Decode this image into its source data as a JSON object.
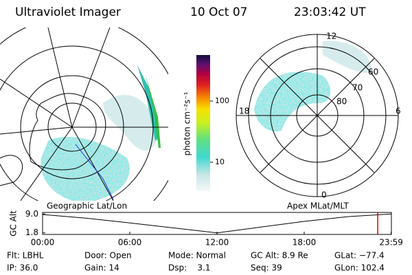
{
  "header": {
    "title": "Ultraviolet Imager",
    "date": "10 Oct 07",
    "time": "23:03:42 UT"
  },
  "left_panel": {
    "caption": "Geographic Lat/Lon"
  },
  "right_panel": {
    "caption": "Apex MLat/MLT",
    "mlt_labels": [
      "12",
      "18",
      "6",
      "0"
    ],
    "lat_labels": [
      "60",
      "70",
      "80"
    ]
  },
  "colorbar": {
    "label": "photon cm⁻²s⁻¹",
    "ticks": [
      "100",
      "10"
    ]
  },
  "chart_data": {
    "type": "line",
    "ylabel": "GC Alt",
    "x": [
      0,
      3,
      6,
      9,
      12,
      15,
      18,
      21,
      23.983
    ],
    "values": [
      8.8,
      7.4,
      5.6,
      3.7,
      1.8,
      4.0,
      6.2,
      8.0,
      9.0
    ],
    "color": "#000000",
    "marker": 23.06,
    "marker_color": "#e00000",
    "xlim": [
      0,
      24
    ],
    "ylim": [
      1.2,
      9.6
    ],
    "xticks": [
      {
        "value": 0,
        "label": "00:00"
      },
      {
        "value": 6,
        "label": "06:00"
      },
      {
        "value": 12,
        "label": "12:00"
      },
      {
        "value": 18,
        "label": "18:00"
      },
      {
        "value": 23.983,
        "label": "23:59"
      }
    ],
    "yticks": [
      {
        "value": 9.0,
        "label": "9.0"
      },
      {
        "value": 1.8,
        "label": "1.8"
      }
    ]
  },
  "footer": {
    "rows": [
      [
        "Flt: LBHL",
        "Door: Open",
        "Mode: Normal",
        "GC Alt: 8.9 Re",
        "GLat: −77.4"
      ],
      [
        "IP: 36.0",
        "Gain: 14",
        "Dsp:    3.1",
        "Seq: 39",
        "GLon: 102.4"
      ]
    ]
  }
}
